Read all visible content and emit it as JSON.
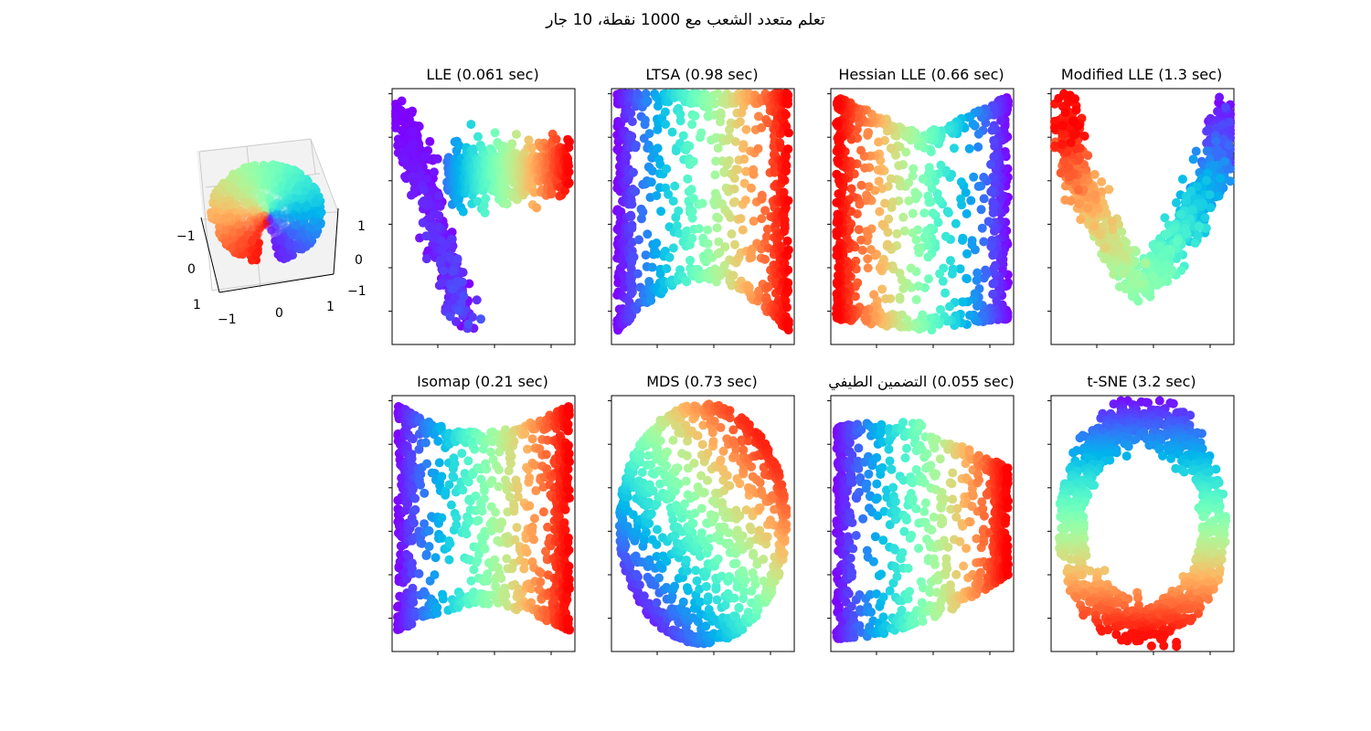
{
  "suptitle": "تعلم متعدد الشعب مع 1000 نقطة، 10 جار",
  "colormap": "rainbow",
  "chart_data": [
    {
      "type": "scatter",
      "projection": "3d",
      "title": "",
      "points": 1000,
      "xticks": [
        "−1",
        "0",
        "1"
      ],
      "yticks": [
        "−1",
        "0",
        "1"
      ],
      "zticks": [
        "−1",
        "0",
        "1"
      ],
      "colormap": "rainbow"
    },
    {
      "type": "scatter",
      "title": "LLE (0.061 sec)",
      "points": 1000,
      "colormap": "rainbow",
      "tick_labels": false
    },
    {
      "type": "scatter",
      "title": "LTSA (0.98 sec)",
      "points": 1000,
      "colormap": "rainbow",
      "tick_labels": false
    },
    {
      "type": "scatter",
      "title": "Hessian LLE (0.66 sec)",
      "points": 1000,
      "colormap": "rainbow",
      "tick_labels": false
    },
    {
      "type": "scatter",
      "title": "Modified LLE (1.3 sec)",
      "points": 1000,
      "colormap": "rainbow",
      "tick_labels": false
    },
    {
      "type": "scatter",
      "title": "Isomap (0.21 sec)",
      "points": 1000,
      "colormap": "rainbow",
      "tick_labels": false
    },
    {
      "type": "scatter",
      "title": "MDS (0.73 sec)",
      "points": 1000,
      "colormap": "rainbow",
      "tick_labels": false
    },
    {
      "type": "scatter",
      "title": "التضمين الطيفي (0.055 sec)",
      "points": 1000,
      "colormap": "rainbow",
      "tick_labels": false
    },
    {
      "type": "scatter",
      "title": "t-SNE (3.2 sec)",
      "points": 1000,
      "colormap": "rainbow",
      "tick_labels": false
    }
  ]
}
